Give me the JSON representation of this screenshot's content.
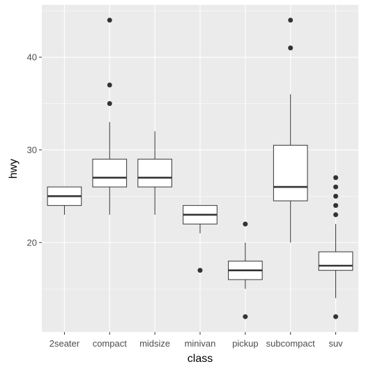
{
  "chart_data": {
    "type": "boxplot",
    "title": "",
    "xlabel": "class",
    "ylabel": "hwy",
    "categories": [
      "2seater",
      "compact",
      "midsize",
      "minivan",
      "pickup",
      "subcompact",
      "suv"
    ],
    "ylim": [
      10.35,
      45.65
    ],
    "yticks": [
      20,
      30,
      40
    ],
    "grid": true,
    "legend": "none",
    "colors": {
      "panel": "#ebebeb",
      "grid_major": "#ffffff",
      "box_fill": "#ffffff",
      "box_stroke": "#333333",
      "outlier": "#333333"
    },
    "boxes": [
      {
        "category": "2seater",
        "lower_whisker": 23,
        "q1": 24,
        "median": 25,
        "q3": 26,
        "upper_whisker": 26,
        "outliers": []
      },
      {
        "category": "compact",
        "lower_whisker": 23,
        "q1": 26,
        "median": 27,
        "q3": 29,
        "upper_whisker": 33,
        "outliers": [
          35,
          37,
          44
        ]
      },
      {
        "category": "midsize",
        "lower_whisker": 23,
        "q1": 26,
        "median": 27,
        "q3": 29,
        "upper_whisker": 32,
        "outliers": []
      },
      {
        "category": "minivan",
        "lower_whisker": 21,
        "q1": 22,
        "median": 23,
        "q3": 24,
        "upper_whisker": 24,
        "outliers": [
          17
        ]
      },
      {
        "category": "pickup",
        "lower_whisker": 15,
        "q1": 16,
        "median": 17,
        "q3": 18,
        "upper_whisker": 20,
        "outliers": [
          12,
          22
        ]
      },
      {
        "category": "subcompact",
        "lower_whisker": 20,
        "q1": 24.5,
        "median": 26,
        "q3": 30.5,
        "upper_whisker": 36,
        "outliers": [
          41,
          44
        ]
      },
      {
        "category": "suv",
        "lower_whisker": 14,
        "q1": 17,
        "median": 17.5,
        "q3": 19,
        "upper_whisker": 22,
        "outliers": [
          12,
          23,
          24,
          25,
          26,
          27
        ]
      }
    ]
  }
}
